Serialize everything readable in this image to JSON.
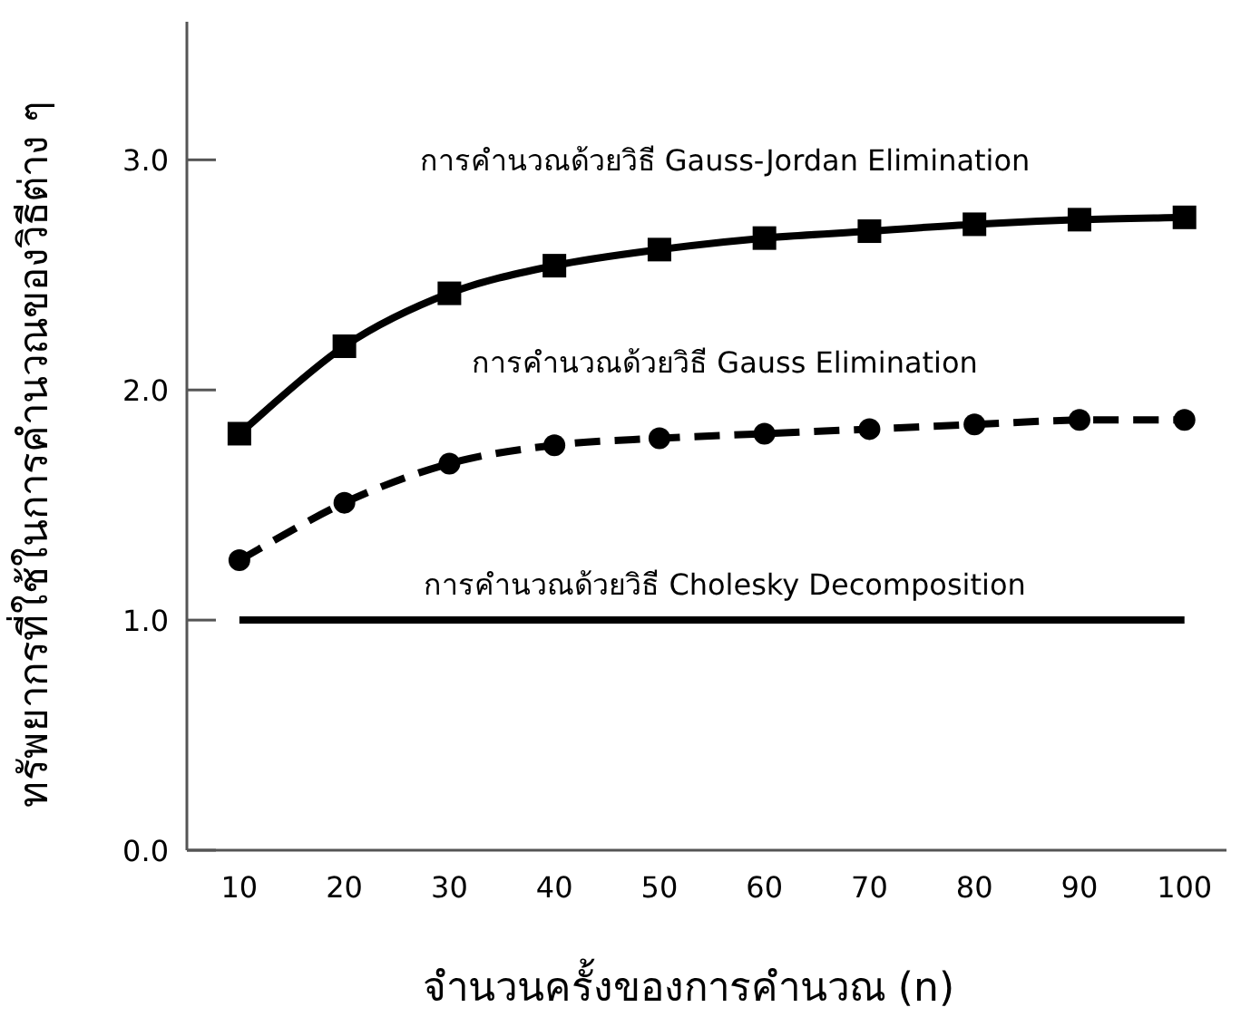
{
  "chart_data": {
    "type": "line",
    "xlabel": "จำนวนครั้งของการคำนวณ (n)",
    "ylabel": "ทรัพยากรที่ใช้ในการคำนวณของวิธีต่าง ๆ",
    "x": [
      10,
      20,
      30,
      40,
      50,
      60,
      70,
      80,
      90,
      100
    ],
    "series": [
      {
        "name": "การคำนวณด้วยวิธี Gauss-Jordan Elimination",
        "color": "#000000",
        "marker": "square",
        "line_style": "solid",
        "values": [
          1.81,
          2.19,
          2.42,
          2.54,
          2.61,
          2.66,
          2.69,
          2.72,
          2.74,
          2.75
        ]
      },
      {
        "name": "การคำนวณด้วยวิธี Gauss Elimination",
        "color": "#000000",
        "marker": "circle",
        "line_style": "dashed",
        "values": [
          1.26,
          1.51,
          1.68,
          1.76,
          1.79,
          1.81,
          1.83,
          1.85,
          1.87,
          1.87
        ]
      },
      {
        "name": "การคำนวณด้วยวิธี Cholesky Decomposition",
        "color": "#000000",
        "marker": "none",
        "line_style": "solid",
        "values": [
          1.0,
          1.0,
          1.0,
          1.0,
          1.0,
          1.0,
          1.0,
          1.0,
          1.0,
          1.0
        ]
      }
    ],
    "xlim": [
      5,
      104
    ],
    "xticks": [
      10,
      20,
      30,
      40,
      50,
      60,
      70,
      80,
      90,
      100
    ],
    "ylim": [
      0,
      3.6
    ],
    "yticks": [
      {
        "value": 0,
        "label": "0.0"
      },
      {
        "value": 1,
        "label": "1.0"
      },
      {
        "value": 2,
        "label": "2.0"
      },
      {
        "value": 3,
        "label": "3.0"
      }
    ],
    "grid": false
  }
}
